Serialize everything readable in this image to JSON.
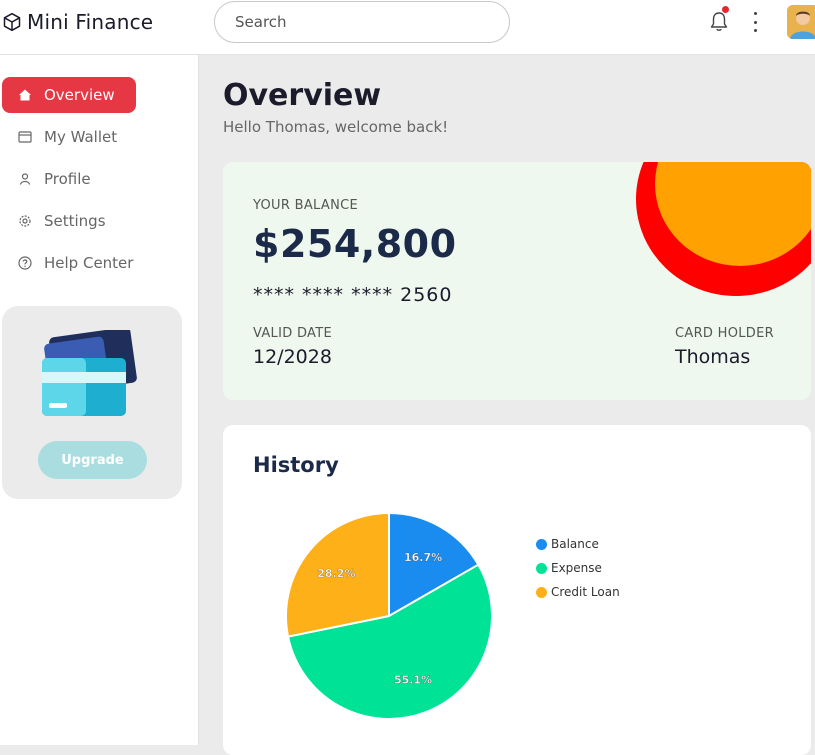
{
  "app": {
    "name": "Mini Finance"
  },
  "search": {
    "placeholder": "Search"
  },
  "header": {
    "notification_dot_color": "#e7282b"
  },
  "sidebar": {
    "items": [
      {
        "label": "Overview",
        "icon": "home-icon",
        "active": true
      },
      {
        "label": "My Wallet",
        "icon": "wallet-icon",
        "active": false
      },
      {
        "label": "Profile",
        "icon": "user-icon",
        "active": false
      },
      {
        "label": "Settings",
        "icon": "gear-icon",
        "active": false
      },
      {
        "label": "Help Center",
        "icon": "help-icon",
        "active": false
      }
    ],
    "promo": {
      "button_label": "Upgrade",
      "illustration": "credit-cards-icon"
    }
  },
  "page": {
    "title": "Overview",
    "subtitle": "Hello Thomas, welcome back!"
  },
  "balance_card": {
    "balance_label": "YOUR BALANCE",
    "balance": "$254,800",
    "card_number": "****  ****  ****  2560",
    "valid_label": "VALID DATE",
    "valid_date": "12/2028",
    "holder_label": "CARD HOLDER",
    "holder_name": "Thomas"
  },
  "history": {
    "title": "History"
  },
  "chart_data": {
    "type": "pie",
    "labels": [
      "Balance",
      "Expense",
      "Credit Loan"
    ],
    "values": [
      16.7,
      55.1,
      28.2
    ],
    "value_labels": [
      "16.7%",
      "55.1%",
      "28.2%"
    ],
    "colors": [
      "#1a8cf0",
      "#00e396",
      "#feb019"
    ],
    "legend_position": "right"
  },
  "colors": {
    "accent": "#e63744",
    "brand_dark": "#1c2a4a"
  }
}
